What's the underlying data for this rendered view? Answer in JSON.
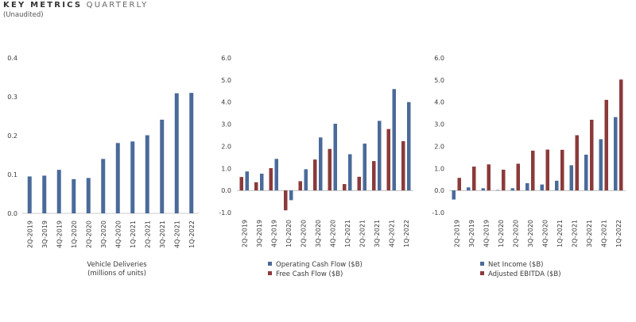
{
  "header": {
    "title_bold": "KEY METRICS",
    "title_light": "QUARTERLY",
    "subtitle": "(Unaudited)"
  },
  "colors": {
    "blue": "#4a6a9a",
    "red": "#8b3a3a",
    "axis": "#999999"
  },
  "chart_data": [
    {
      "type": "bar",
      "categories": [
        "2Q-2019",
        "3Q-2019",
        "4Q-2019",
        "1Q-2020",
        "2Q-2020",
        "3Q-2020",
        "4Q-2020",
        "1Q-2021",
        "2Q-2021",
        "3Q-2021",
        "4Q-2021",
        "1Q-2022"
      ],
      "ylim": [
        0,
        0.4
      ],
      "yticks": [
        0.0,
        0.1,
        0.2,
        0.3,
        0.4
      ],
      "tick_decimals": 1,
      "series": [
        {
          "name": "",
          "color": "#4a6a9a",
          "values": [
            0.095,
            0.097,
            0.112,
            0.088,
            0.091,
            0.14,
            0.181,
            0.185,
            0.201,
            0.241,
            0.309,
            0.31
          ]
        }
      ],
      "xlabel": "Vehicle Deliveries\n(millions of units)",
      "legend": []
    },
    {
      "type": "bar",
      "categories": [
        "2Q-2019",
        "3Q-2019",
        "4Q-2019",
        "1Q-2020",
        "2Q-2020",
        "3Q-2020",
        "4Q-2020",
        "1Q-2021",
        "2Q-2021",
        "3Q-2021",
        "4Q-2021",
        "1Q-2022"
      ],
      "ylim": [
        -1,
        6
      ],
      "yticks": [
        -1.0,
        0.0,
        1.0,
        2.0,
        3.0,
        4.0,
        5.0,
        6.0
      ],
      "tick_decimals": 1,
      "series": [
        {
          "name": "Free Cash Flow ($B)",
          "color": "#8b3a3a",
          "values": [
            0.61,
            0.37,
            1.01,
            -0.9,
            0.42,
            1.4,
            1.88,
            0.29,
            0.62,
            1.33,
            2.78,
            2.23
          ]
        },
        {
          "name": "Operating Cash Flow ($B)",
          "color": "#4a6a9a",
          "values": [
            0.86,
            0.76,
            1.43,
            -0.44,
            0.96,
            2.4,
            3.02,
            1.64,
            2.12,
            3.15,
            4.59,
            4.0
          ]
        }
      ],
      "legend": [
        "Operating Cash Flow ($B)",
        "Free Cash Flow ($B)"
      ]
    },
    {
      "type": "bar",
      "categories": [
        "2Q-2019",
        "3Q-2019",
        "4Q-2019",
        "1Q-2020",
        "2Q-2020",
        "3Q-2020",
        "4Q-2020",
        "1Q-2021",
        "2Q-2021",
        "3Q-2021",
        "4Q-2021",
        "1Q-2022"
      ],
      "ylim": [
        -1,
        6
      ],
      "yticks": [
        -1.0,
        0.0,
        1.0,
        2.0,
        3.0,
        4.0,
        5.0,
        6.0
      ],
      "tick_decimals": 1,
      "series": [
        {
          "name": "Net Income ($B)",
          "color": "#4a6a9a",
          "values": [
            -0.41,
            0.14,
            0.1,
            0.02,
            0.1,
            0.33,
            0.27,
            0.44,
            1.14,
            1.62,
            2.32,
            3.32
          ]
        },
        {
          "name": "Adjusted EBITDA ($B)",
          "color": "#8b3a3a",
          "values": [
            0.57,
            1.08,
            1.18,
            0.94,
            1.21,
            1.8,
            1.85,
            1.84,
            2.5,
            3.2,
            4.1,
            5.02
          ]
        }
      ],
      "legend": [
        "Net Income ($B)",
        "Adjusted EBITDA ($B)"
      ]
    }
  ]
}
